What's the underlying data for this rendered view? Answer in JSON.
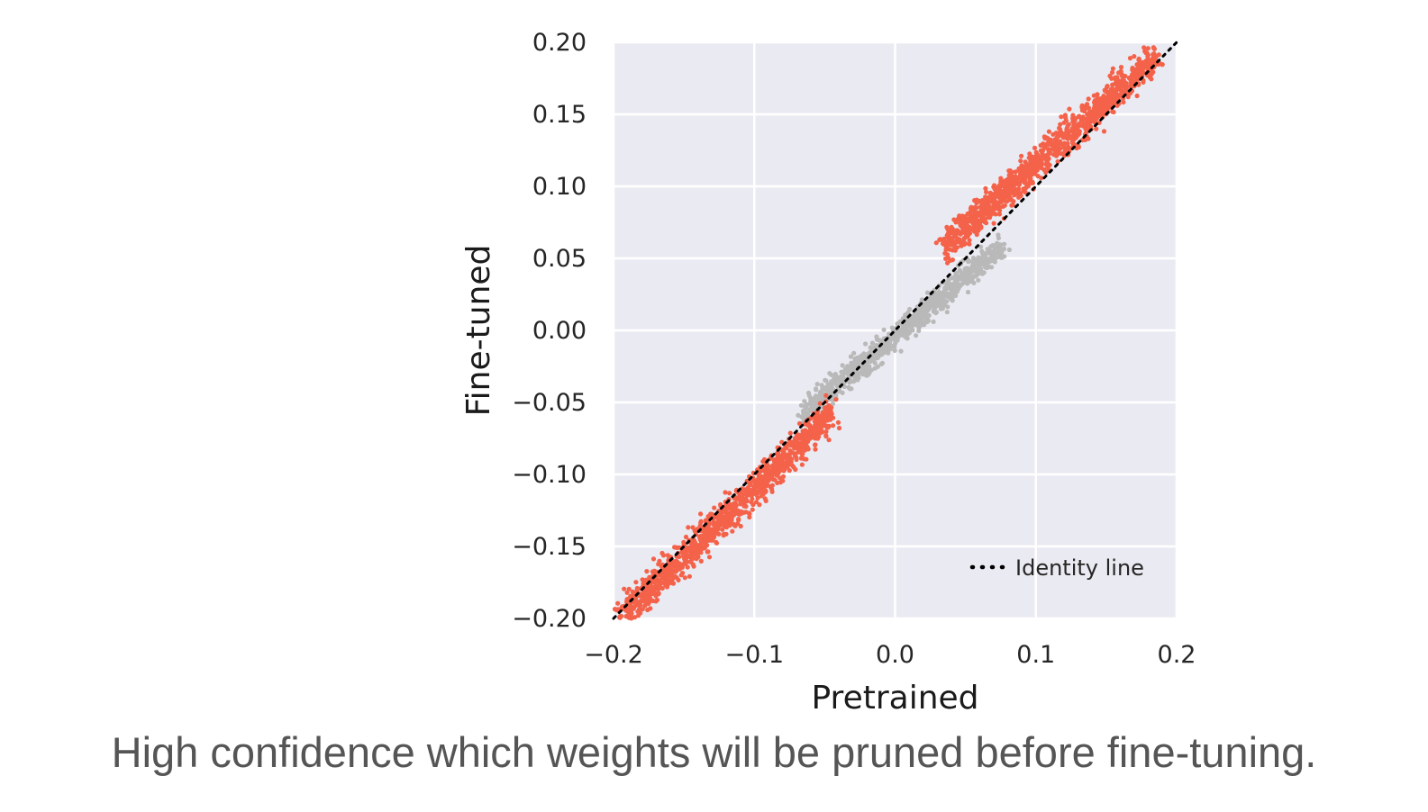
{
  "chart_data": {
    "type": "scatter",
    "xlabel": "Pretrained",
    "ylabel": "Fine-tuned",
    "xlim": [
      -0.2,
      0.2
    ],
    "ylim": [
      -0.2,
      0.2
    ],
    "x_ticks": [
      "−0.2",
      "−0.1",
      "0.0",
      "0.1",
      "0.2"
    ],
    "x_tick_values": [
      -0.2,
      -0.1,
      0.0,
      0.1,
      0.2
    ],
    "y_ticks": [
      "−0.20",
      "−0.15",
      "−0.10",
      "−0.05",
      "0.00",
      "0.05",
      "0.10",
      "0.15",
      "0.20"
    ],
    "y_tick_values": [
      -0.2,
      -0.15,
      -0.1,
      -0.05,
      0.0,
      0.05,
      0.1,
      0.15,
      0.2
    ],
    "grid": true,
    "background": "#eaeaf2",
    "legend": {
      "placement": "lower-right",
      "entries": [
        {
          "label": "Identity line",
          "style": "dotted",
          "color": "#000000"
        }
      ]
    },
    "series": [
      {
        "role": "pruned",
        "color": "#f4624a",
        "segments": [
          {
            "x_range": [
              -0.195,
              -0.045
            ],
            "y_range": [
              -0.2,
              -0.057
            ],
            "spread": 0.009
          },
          {
            "x_range": [
              0.035,
              0.185
            ],
            "y_range": [
              0.058,
              0.19
            ],
            "spread": 0.009
          }
        ]
      },
      {
        "role": "kept",
        "color": "#b9b9b9",
        "segments": [
          {
            "x_range": [
              -0.065,
              0.075
            ],
            "y_range": [
              -0.058,
              0.058
            ],
            "spread": 0.007
          }
        ]
      }
    ],
    "identity_line": {
      "from": [
        -0.2,
        -0.2
      ],
      "to": [
        0.2,
        0.2
      ],
      "color": "#000000"
    }
  },
  "caption": "High confidence which weights will be pruned before fine-tuning."
}
